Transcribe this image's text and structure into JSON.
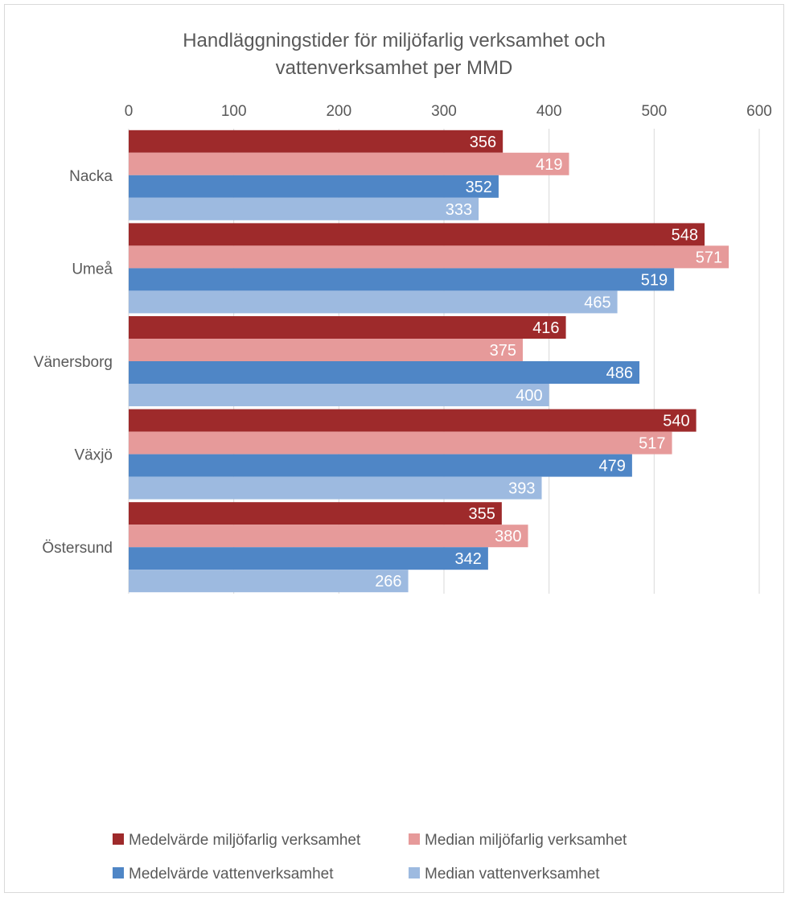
{
  "chart_data": {
    "type": "bar",
    "orientation": "horizontal",
    "title": "Handläggningstider för miljöfarlig verksamhet och vattenverksamhet per MMD",
    "title_lines": [
      "Handläggningstider för miljöfarlig verksamhet och",
      "vattenverksamhet per MMD"
    ],
    "categories": [
      "Nacka",
      "Umeå",
      "Vänersborg",
      "Växjö",
      "Östersund"
    ],
    "xlim": [
      0,
      600
    ],
    "x_ticks": [
      0,
      100,
      200,
      300,
      400,
      500,
      600
    ],
    "x_axis_position": "top",
    "grid": true,
    "legend_position": "bottom",
    "series": [
      {
        "name": "Medelvärde miljöfarlig verksamhet",
        "color": "#9e2a2b",
        "values": [
          356,
          548,
          416,
          540,
          355
        ]
      },
      {
        "name": "Median miljöfarlig verksamhet",
        "color": "#e69a9a",
        "values": [
          419,
          571,
          375,
          517,
          380
        ]
      },
      {
        "name": "Medelvärde vattenverksamhet",
        "color": "#4f86c6",
        "values": [
          352,
          519,
          486,
          479,
          342
        ]
      },
      {
        "name": "Median vattenverksamhet",
        "color": "#9dbae0",
        "values": [
          333,
          465,
          400,
          393,
          266
        ]
      }
    ]
  }
}
